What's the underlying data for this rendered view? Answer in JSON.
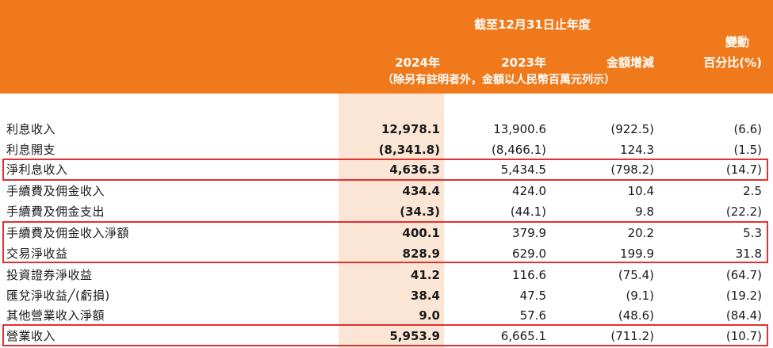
{
  "header": {
    "period": "截至12月31日止年度",
    "change_pct_line1": "變動",
    "col_2024": "2024年",
    "col_2023": "2023年",
    "col_change": "金額增減",
    "col_pct": "百分比(%)",
    "unit_note": "（除另有註明者外，金額以人民幣百萬元列示）"
  },
  "rows": [
    {
      "label": "利息收入",
      "v2024": "12,978.1",
      "v2023": "13,900.6",
      "change": "(922.5)",
      "pct": "(6.6)"
    },
    {
      "label": "利息開支",
      "v2024": "(8,341.8)",
      "v2023": "(8,466.1)",
      "change": "124.3",
      "pct": "(1.5)"
    },
    {
      "label": "淨利息收入",
      "v2024": "4,636.3",
      "v2023": "5,434.5",
      "change": "(798.2)",
      "pct": "(14.7)"
    },
    {
      "label": "手續費及佣金收入",
      "v2024": "434.4",
      "v2023": "424.0",
      "change": "10.4",
      "pct": "2.5"
    },
    {
      "label": "手續費及佣金支出",
      "v2024": "(34.3)",
      "v2023": "(44.1)",
      "change": "9.8",
      "pct": "(22.2)"
    },
    {
      "label": "手續費及佣金收入淨額",
      "v2024": "400.1",
      "v2023": "379.9",
      "change": "20.2",
      "pct": "5.3"
    },
    {
      "label": "交易淨收益",
      "v2024": "828.9",
      "v2023": "629.0",
      "change": "199.9",
      "pct": "31.8"
    },
    {
      "label": "投資證券淨收益",
      "v2024": "41.2",
      "v2023": "116.6",
      "change": "(75.4)",
      "pct": "(64.7)"
    },
    {
      "label": "匯兌淨收益╱(虧損)",
      "v2024": "38.4",
      "v2023": "47.5",
      "change": "(9.1)",
      "pct": "(19.2)"
    },
    {
      "label": "其他營業收入淨額",
      "v2024": "9.0",
      "v2023": "57.6",
      "change": "(48.6)",
      "pct": "(84.4)"
    },
    {
      "label": "營業收入",
      "v2024": "5,953.9",
      "v2023": "6,665.1",
      "change": "(711.2)",
      "pct": "(10.7)"
    }
  ]
}
